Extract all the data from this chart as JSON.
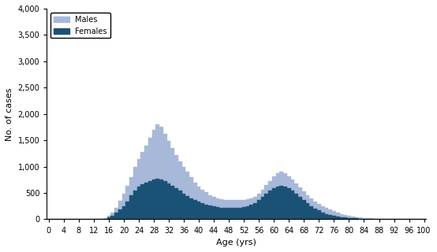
{
  "ages": [
    0,
    1,
    2,
    3,
    4,
    5,
    6,
    7,
    8,
    9,
    10,
    11,
    12,
    13,
    14,
    15,
    16,
    17,
    18,
    19,
    20,
    21,
    22,
    23,
    24,
    25,
    26,
    27,
    28,
    29,
    30,
    31,
    32,
    33,
    34,
    35,
    36,
    37,
    38,
    39,
    40,
    41,
    42,
    43,
    44,
    45,
    46,
    47,
    48,
    49,
    50,
    51,
    52,
    53,
    54,
    55,
    56,
    57,
    58,
    59,
    60,
    61,
    62,
    63,
    64,
    65,
    66,
    67,
    68,
    69,
    70,
    71,
    72,
    73,
    74,
    75,
    76,
    77,
    78,
    79,
    80,
    81,
    82,
    83,
    84,
    85,
    86,
    87,
    88,
    89,
    90,
    91,
    92,
    93,
    94,
    95,
    96,
    97,
    98,
    99,
    100
  ],
  "males": [
    10,
    5,
    5,
    5,
    5,
    5,
    5,
    5,
    5,
    5,
    5,
    5,
    5,
    5,
    5,
    15,
    60,
    130,
    220,
    350,
    490,
    640,
    800,
    1000,
    1150,
    1280,
    1400,
    1550,
    1700,
    1800,
    1750,
    1620,
    1480,
    1350,
    1220,
    1100,
    1000,
    900,
    800,
    700,
    620,
    560,
    510,
    460,
    420,
    400,
    380,
    370,
    365,
    360,
    360,
    365,
    370,
    380,
    400,
    430,
    490,
    560,
    650,
    730,
    810,
    870,
    900,
    880,
    820,
    750,
    680,
    600,
    530,
    460,
    400,
    340,
    290,
    250,
    210,
    180,
    150,
    120,
    100,
    80,
    60,
    50,
    40,
    30,
    25,
    20,
    15,
    12,
    10,
    8,
    6,
    5,
    4,
    3,
    2,
    2,
    1,
    1,
    1,
    1,
    1
  ],
  "females": [
    5,
    3,
    3,
    3,
    3,
    3,
    3,
    3,
    3,
    3,
    3,
    3,
    3,
    3,
    3,
    8,
    30,
    70,
    120,
    180,
    250,
    330,
    450,
    550,
    620,
    660,
    700,
    730,
    760,
    770,
    750,
    720,
    680,
    640,
    590,
    540,
    490,
    440,
    400,
    360,
    330,
    300,
    280,
    260,
    240,
    230,
    220,
    215,
    210,
    210,
    215,
    220,
    230,
    250,
    275,
    310,
    360,
    420,
    480,
    540,
    590,
    620,
    630,
    620,
    590,
    550,
    490,
    420,
    360,
    310,
    250,
    200,
    165,
    130,
    100,
    80,
    65,
    50,
    40,
    30,
    25,
    20,
    15,
    12,
    10,
    8,
    6,
    5,
    4,
    3,
    2,
    2,
    1,
    1,
    1,
    1,
    1,
    1,
    1,
    1,
    1
  ],
  "male_color": "#a8b8d8",
  "female_color": "#1a5276",
  "xlabel": "Age (yrs)",
  "ylabel": "No. of cases",
  "ylim": [
    0,
    4000
  ],
  "xlim": [
    -0.5,
    100.5
  ],
  "yticks": [
    0,
    500,
    1000,
    1500,
    2000,
    2500,
    3000,
    3500,
    4000
  ],
  "xticks": [
    0,
    4,
    8,
    12,
    16,
    20,
    24,
    28,
    32,
    36,
    40,
    44,
    48,
    52,
    56,
    60,
    64,
    68,
    72,
    76,
    80,
    84,
    88,
    92,
    96,
    100
  ],
  "legend_labels": [
    "Males",
    "Females"
  ],
  "legend_colors": [
    "#a8b8d8",
    "#1a5276"
  ]
}
